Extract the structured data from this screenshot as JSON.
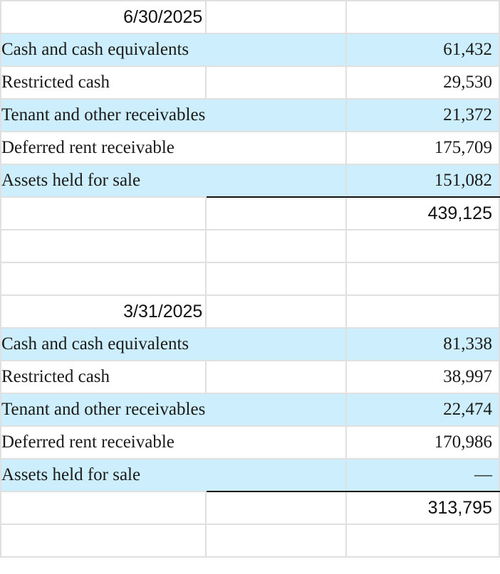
{
  "sections": [
    {
      "date": "6/30/2025",
      "rows": [
        {
          "label": "Cash and cash equivalents",
          "value": "61,432"
        },
        {
          "label": "Restricted cash",
          "value": "29,530"
        },
        {
          "label": "Tenant and other receivables",
          "value": "21,372"
        },
        {
          "label": "Deferred rent receivable",
          "value": "175,709"
        },
        {
          "label": "Assets held for sale",
          "value": "151,082"
        }
      ],
      "total": "439,125"
    },
    {
      "date": "3/31/2025",
      "rows": [
        {
          "label": "Cash and cash equivalents",
          "value": "81,338"
        },
        {
          "label": "Restricted cash",
          "value": "38,997"
        },
        {
          "label": "Tenant and other receivables",
          "value": "22,474"
        },
        {
          "label": "Deferred rent receivable",
          "value": "170,986"
        },
        {
          "label": "Assets held for sale",
          "value": "—"
        }
      ],
      "total": "313,795"
    }
  ],
  "colors": {
    "row_highlight": "#cdeefc",
    "grid": "#e0e0e0",
    "underline": "#111111"
  }
}
